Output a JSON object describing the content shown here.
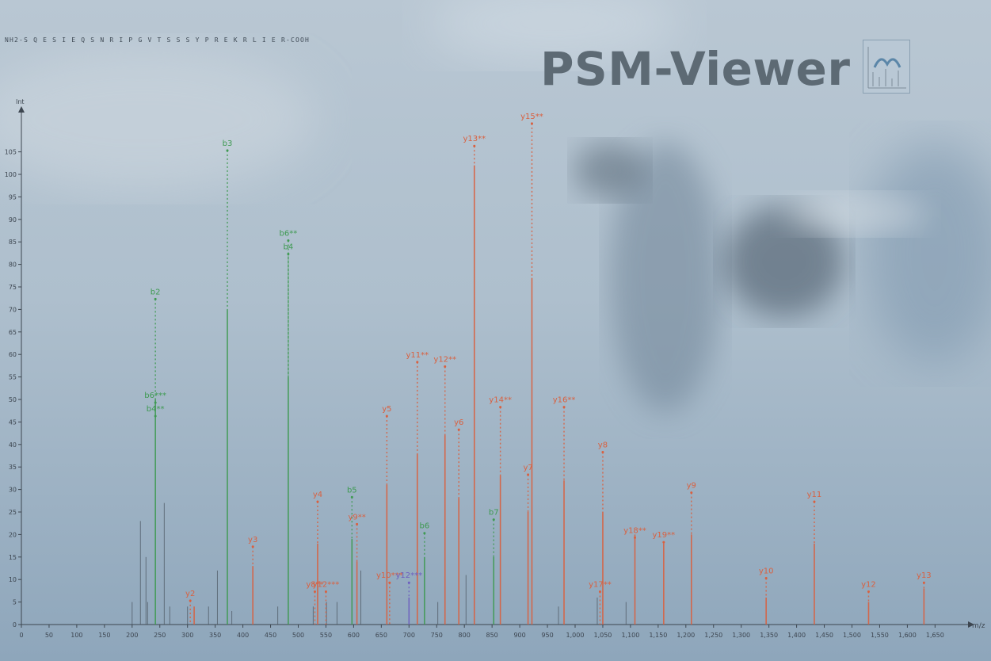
{
  "app": {
    "title": "PSM-Viewer"
  },
  "peptide": {
    "text": "NH2-S Q E S I E Q S N R I P G V T S S S Y P R E K R L I E R-COOH"
  },
  "colors": {
    "b_ion": "#3f9a52",
    "y_ion": "#d9603f",
    "unassigned": "#4d5863",
    "other": "#6d5fbf",
    "axis": "#3d4650"
  },
  "chart_data": {
    "type": "bar",
    "title": "",
    "xlabel": "m/z",
    "ylabel": "Int",
    "xlim": [
      0,
      1700
    ],
    "ylim": [
      0,
      110
    ],
    "xticks": [
      0,
      50,
      100,
      150,
      200,
      250,
      300,
      350,
      400,
      450,
      500,
      550,
      600,
      650,
      700,
      750,
      800,
      850,
      900,
      950,
      1000,
      1050,
      1100,
      1150,
      1200,
      1250,
      1300,
      1350,
      1400,
      1450,
      1500,
      1550,
      1600,
      1650
    ],
    "xtick_labels": [
      "0",
      "50",
      "100",
      "150",
      "200",
      "250",
      "300",
      "350",
      "400",
      "450",
      "500",
      "550",
      "600",
      "650",
      "700",
      "750",
      "800",
      "850",
      "900",
      "950",
      "1,000",
      "1,050",
      "1,100",
      "1,150",
      "1,200",
      "1,250",
      "1,300",
      "1,350",
      "1,400",
      "1,450",
      "1,500",
      "1,550",
      "1,600",
      "1,650"
    ],
    "yticks": [
      0,
      5,
      10,
      15,
      20,
      25,
      30,
      35,
      40,
      45,
      50,
      55,
      60,
      65,
      70,
      75,
      80,
      85,
      90,
      95,
      100,
      105
    ],
    "peaks": [
      {
        "mz": 200,
        "intensity": 5,
        "ion": "none"
      },
      {
        "mz": 215,
        "intensity": 23,
        "ion": "none"
      },
      {
        "mz": 225,
        "intensity": 15,
        "ion": "none"
      },
      {
        "mz": 228,
        "intensity": 5,
        "ion": "none"
      },
      {
        "mz": 242,
        "intensity": 50,
        "ion": "b"
      },
      {
        "mz": 258,
        "intensity": 27,
        "ion": "none"
      },
      {
        "mz": 268,
        "intensity": 4,
        "ion": "none"
      },
      {
        "mz": 300,
        "intensity": 4,
        "ion": "none"
      },
      {
        "mz": 312,
        "intensity": 4,
        "ion": "y"
      },
      {
        "mz": 338,
        "intensity": 4,
        "ion": "none"
      },
      {
        "mz": 354,
        "intensity": 12,
        "ion": "none"
      },
      {
        "mz": 372,
        "intensity": 70,
        "ion": "b"
      },
      {
        "mz": 380,
        "intensity": 3,
        "ion": "none"
      },
      {
        "mz": 418,
        "intensity": 13,
        "ion": "y"
      },
      {
        "mz": 463,
        "intensity": 4,
        "ion": "none"
      },
      {
        "mz": 482,
        "intensity": 55,
        "ion": "b"
      },
      {
        "mz": 527,
        "intensity": 4,
        "ion": "none"
      },
      {
        "mz": 535,
        "intensity": 18,
        "ion": "y"
      },
      {
        "mz": 551,
        "intensity": 5,
        "ion": "none"
      },
      {
        "mz": 570,
        "intensity": 5,
        "ion": "none"
      },
      {
        "mz": 597,
        "intensity": 19,
        "ion": "b"
      },
      {
        "mz": 606,
        "intensity": 14,
        "ion": "y"
      },
      {
        "mz": 613,
        "intensity": 12,
        "ion": "none"
      },
      {
        "mz": 660,
        "intensity": 31,
        "ion": "y"
      },
      {
        "mz": 700,
        "intensity": 6,
        "ion": "other"
      },
      {
        "mz": 715,
        "intensity": 38,
        "ion": "y"
      },
      {
        "mz": 728,
        "intensity": 15,
        "ion": "b"
      },
      {
        "mz": 752,
        "intensity": 5,
        "ion": "none"
      },
      {
        "mz": 765,
        "intensity": 42,
        "ion": "y"
      },
      {
        "mz": 790,
        "intensity": 28,
        "ion": "y"
      },
      {
        "mz": 803,
        "intensity": 11,
        "ion": "none"
      },
      {
        "mz": 818,
        "intensity": 102,
        "ion": "y"
      },
      {
        "mz": 853,
        "intensity": 15,
        "ion": "b"
      },
      {
        "mz": 865,
        "intensity": 33,
        "ion": "y"
      },
      {
        "mz": 915,
        "intensity": 25,
        "ion": "y"
      },
      {
        "mz": 922,
        "intensity": 77,
        "ion": "y"
      },
      {
        "mz": 970,
        "intensity": 4,
        "ion": "none"
      },
      {
        "mz": 980,
        "intensity": 32,
        "ion": "y"
      },
      {
        "mz": 1040,
        "intensity": 6,
        "ion": "none"
      },
      {
        "mz": 1050,
        "intensity": 25,
        "ion": "y"
      },
      {
        "mz": 1092,
        "intensity": 5,
        "ion": "none"
      },
      {
        "mz": 1108,
        "intensity": 20,
        "ion": "y"
      },
      {
        "mz": 1160,
        "intensity": 18,
        "ion": "y"
      },
      {
        "mz": 1210,
        "intensity": 20,
        "ion": "y"
      },
      {
        "mz": 1345,
        "intensity": 6,
        "ion": "y"
      },
      {
        "mz": 1432,
        "intensity": 18,
        "ion": "y"
      },
      {
        "mz": 1530,
        "intensity": 5,
        "ion": "y"
      },
      {
        "mz": 1630,
        "intensity": 8,
        "ion": "y"
      }
    ],
    "annotations": [
      {
        "mz": 242,
        "intensity": 73,
        "text": "b2",
        "ion": "b"
      },
      {
        "mz": 242,
        "intensity": 50,
        "text": "b6***",
        "ion": "b"
      },
      {
        "mz": 242,
        "intensity": 47,
        "text": "b4**",
        "ion": "b"
      },
      {
        "mz": 305,
        "intensity": 6,
        "text": "y2",
        "ion": "y"
      },
      {
        "mz": 372,
        "intensity": 106,
        "text": "b3",
        "ion": "b"
      },
      {
        "mz": 418,
        "intensity": 18,
        "text": "y3",
        "ion": "y"
      },
      {
        "mz": 482,
        "intensity": 86,
        "text": "b6**",
        "ion": "b"
      },
      {
        "mz": 482,
        "intensity": 83,
        "text": "b4",
        "ion": "b"
      },
      {
        "mz": 530,
        "intensity": 8,
        "text": "y8**",
        "ion": "y"
      },
      {
        "mz": 550,
        "intensity": 8,
        "text": "y12***",
        "ion": "y"
      },
      {
        "mz": 535,
        "intensity": 28,
        "text": "y4",
        "ion": "y"
      },
      {
        "mz": 597,
        "intensity": 29,
        "text": "b5",
        "ion": "b"
      },
      {
        "mz": 606,
        "intensity": 23,
        "text": "y9**",
        "ion": "y"
      },
      {
        "mz": 660,
        "intensity": 47,
        "text": "y5",
        "ion": "y"
      },
      {
        "mz": 665,
        "intensity": 10,
        "text": "y10***",
        "ion": "y"
      },
      {
        "mz": 700,
        "intensity": 10,
        "text": "y12***",
        "ion": "other"
      },
      {
        "mz": 715,
        "intensity": 59,
        "text": "y11**",
        "ion": "y"
      },
      {
        "mz": 728,
        "intensity": 21,
        "text": "b6",
        "ion": "b"
      },
      {
        "mz": 765,
        "intensity": 58,
        "text": "y12**",
        "ion": "y"
      },
      {
        "mz": 790,
        "intensity": 44,
        "text": "y6",
        "ion": "y"
      },
      {
        "mz": 818,
        "intensity": 107,
        "text": "y13**",
        "ion": "y"
      },
      {
        "mz": 853,
        "intensity": 24,
        "text": "b7",
        "ion": "b"
      },
      {
        "mz": 865,
        "intensity": 49,
        "text": "y14**",
        "ion": "y"
      },
      {
        "mz": 915,
        "intensity": 34,
        "text": "y7",
        "ion": "y"
      },
      {
        "mz": 922,
        "intensity": 112,
        "text": "y15**",
        "ion": "y"
      },
      {
        "mz": 980,
        "intensity": 49,
        "text": "y16**",
        "ion": "y"
      },
      {
        "mz": 1050,
        "intensity": 39,
        "text": "y8",
        "ion": "y"
      },
      {
        "mz": 1045,
        "intensity": 8,
        "text": "y17**",
        "ion": "y"
      },
      {
        "mz": 1108,
        "intensity": 20,
        "text": "y18**",
        "ion": "y"
      },
      {
        "mz": 1160,
        "intensity": 19,
        "text": "y19**",
        "ion": "y"
      },
      {
        "mz": 1210,
        "intensity": 30,
        "text": "y9",
        "ion": "y"
      },
      {
        "mz": 1345,
        "intensity": 11,
        "text": "y10",
        "ion": "y"
      },
      {
        "mz": 1432,
        "intensity": 28,
        "text": "y11",
        "ion": "y"
      },
      {
        "mz": 1530,
        "intensity": 8,
        "text": "y12",
        "ion": "y"
      },
      {
        "mz": 1630,
        "intensity": 10,
        "text": "y13",
        "ion": "y"
      }
    ]
  }
}
